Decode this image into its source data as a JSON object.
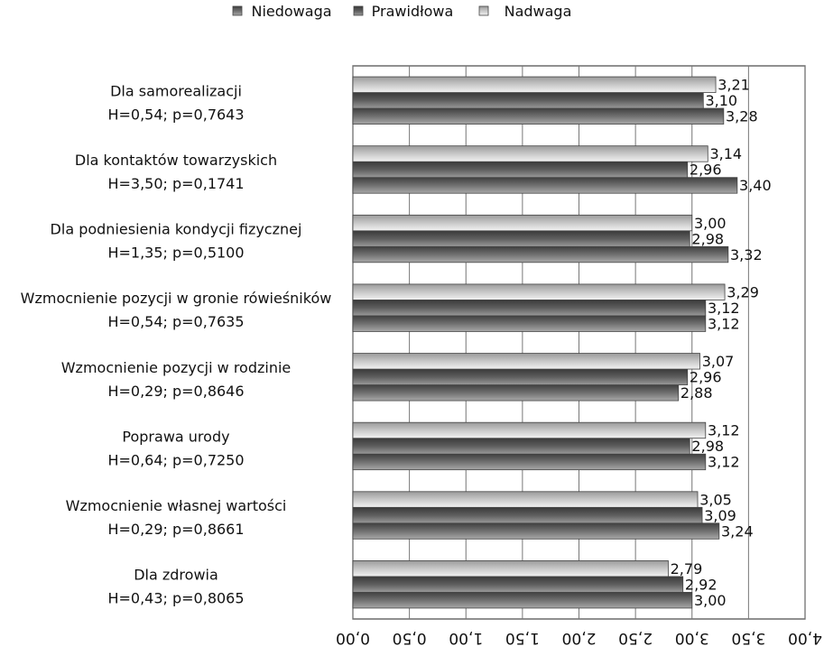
{
  "chart_data": {
    "type": "bar",
    "orientation": "horizontal",
    "categories": [
      {
        "label": "Dla samorealizacji",
        "stats": "H=0,54; p=0,7643"
      },
      {
        "label": "Dla kontaktów towarzyskich",
        "stats": "H=3,50; p=0,1741"
      },
      {
        "label": "Dla podniesienia kondycji fizycznej",
        "stats": "H=1,35; p=0,5100"
      },
      {
        "label": "Wzmocnienie pozycji w gronie rówieśników",
        "stats": "H=0,54; p=0,7635"
      },
      {
        "label": "Wzmocnienie pozycji w rodzinie",
        "stats": "H=0,29; p=0,8646"
      },
      {
        "label": "Poprawa urody",
        "stats": "H=0,64; p=0,7250"
      },
      {
        "label": "Wzmocnienie własnej wartości",
        "stats": "H=0,29; p=0,8661"
      },
      {
        "label": "Dla zdrowia",
        "stats": "H=0,43; p=0,8065"
      }
    ],
    "series": [
      {
        "name": "Nadwaga",
        "color": "#d2d2d2",
        "values": [
          3.21,
          3.14,
          3.0,
          3.29,
          3.07,
          3.12,
          3.05,
          2.79
        ],
        "labels": [
          "3,21",
          "3,14",
          "3,00",
          "3,29",
          "3,07",
          "3,12",
          "3,05",
          "2,79"
        ]
      },
      {
        "name": "Prawidłowa",
        "color": "#6a6a6a",
        "values": [
          3.1,
          2.96,
          2.98,
          3.12,
          2.96,
          2.98,
          3.09,
          2.92
        ],
        "labels": [
          "3,10",
          "2,96",
          "2,98",
          "3,12",
          "2,96",
          "2,98",
          "3,09",
          "2,92"
        ]
      },
      {
        "name": "Niedowaga",
        "color": "#7d7d7d",
        "values": [
          3.28,
          3.4,
          3.32,
          3.12,
          2.88,
          3.12,
          3.24,
          3.0
        ],
        "labels": [
          "3,28",
          "3,40",
          "3,32",
          "3,12",
          "2,88",
          "3,12",
          "3,24",
          "3,00"
        ]
      }
    ],
    "xlim": [
      0,
      4
    ],
    "x_ticks": [
      "0,00",
      "0,50",
      "1,00",
      "1,50",
      "2,00",
      "2,50",
      "3,00",
      "3,50",
      "4,00"
    ],
    "legend": {
      "placement": "top",
      "order": [
        "Niedowaga",
        "Prawidłowa",
        "Nadwaga"
      ]
    },
    "grid": true,
    "image_orientation": "upside-down (rotated 180 degrees)"
  }
}
